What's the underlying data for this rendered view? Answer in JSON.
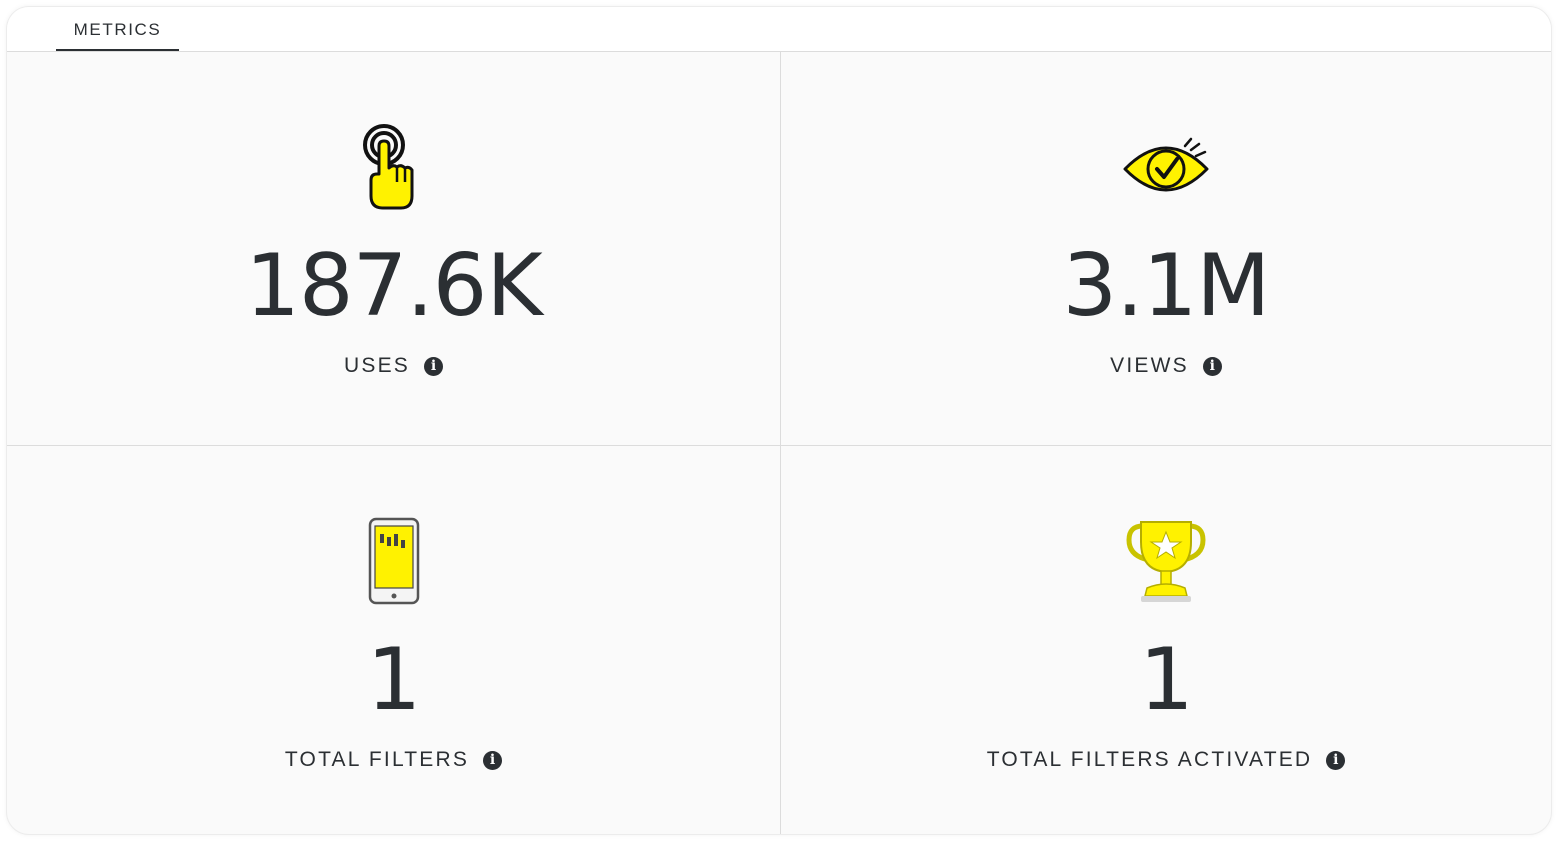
{
  "tabs": [
    {
      "label": "METRICS",
      "active": true
    }
  ],
  "metrics": [
    {
      "value": "187.6K",
      "label": "USES",
      "icon": "tap-hand-icon"
    },
    {
      "value": "3.1M",
      "label": "VIEWS",
      "icon": "eye-check-icon"
    },
    {
      "value": "1",
      "label": "TOTAL FILTERS",
      "icon": "phone-icon"
    },
    {
      "value": "1",
      "label": "TOTAL FILTERS ACTIVATED",
      "icon": "trophy-icon"
    }
  ],
  "info_glyph": "i",
  "colors": {
    "accent_yellow": "#fff200",
    "text": "#2b2f33",
    "divider": "#dcdcdc"
  }
}
